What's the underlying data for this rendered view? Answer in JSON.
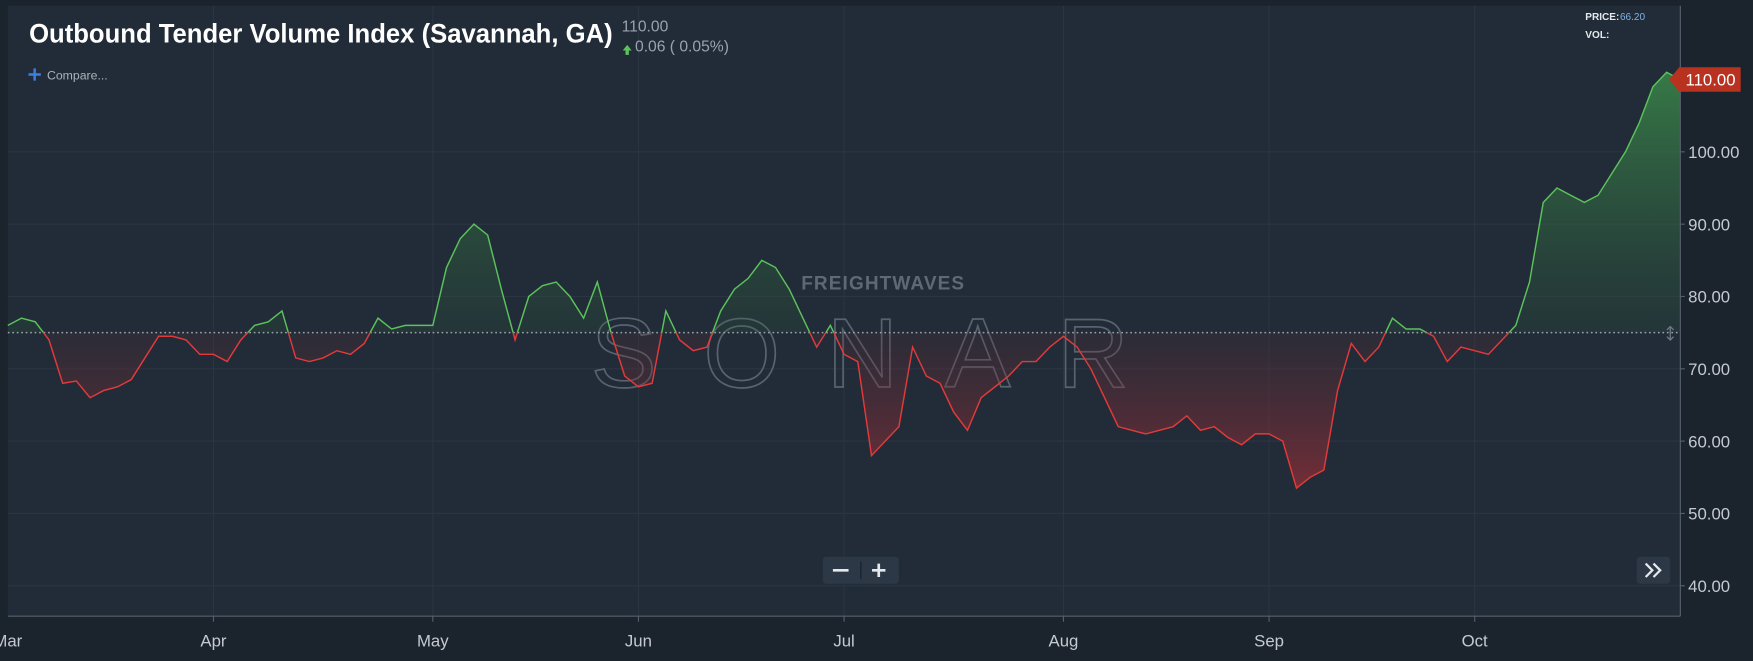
{
  "header": {
    "title": "Outbound Tender Volume Index (Savannah, GA)",
    "price": "110.00",
    "change": "0.06 ( 0.05%)",
    "compare": "Compare...",
    "price_label": "PRICE:",
    "price_value": "66.20",
    "vol_label": "VOL:"
  },
  "chart_data": {
    "type": "line",
    "categories": [
      "Mar",
      null,
      null,
      null,
      null,
      null,
      null,
      null,
      null,
      null,
      null,
      null,
      null,
      null,
      null,
      "Apr",
      null,
      null,
      null,
      null,
      null,
      null,
      null,
      null,
      null,
      null,
      null,
      null,
      null,
      null,
      null,
      "May",
      null,
      null,
      null,
      null,
      null,
      null,
      null,
      null,
      null,
      null,
      null,
      null,
      null,
      null,
      "Jun",
      null,
      null,
      null,
      null,
      null,
      null,
      null,
      null,
      null,
      null,
      null,
      null,
      null,
      null,
      "Jul",
      null,
      null,
      null,
      null,
      null,
      null,
      null,
      null,
      null,
      null,
      null,
      null,
      null,
      null,
      null,
      "Aug",
      null,
      null,
      null,
      null,
      null,
      null,
      null,
      null,
      null,
      null,
      null,
      null,
      null,
      null,
      "Sep",
      null,
      null,
      null,
      null,
      null,
      null,
      null,
      null,
      null,
      null,
      null,
      null,
      null,
      null,
      "Oct",
      null,
      null,
      null,
      null,
      null,
      null,
      null,
      null,
      null,
      null,
      null,
      null,
      null,
      null,
      null
    ],
    "series": [
      {
        "values": [
          76,
          77,
          76.5,
          74,
          68,
          68.3,
          66,
          67,
          67.5,
          68.5,
          71.5,
          74.5,
          74.5,
          74,
          72,
          72,
          71,
          74,
          76,
          76.5,
          78,
          71.5,
          71,
          71.5,
          72.5,
          72,
          73.5,
          77,
          75.5,
          76,
          76,
          76,
          84,
          88,
          90,
          88.5,
          81,
          74,
          80,
          81.5,
          82,
          80,
          77,
          82,
          75,
          69,
          67.5,
          68,
          78,
          74,
          72.5,
          73,
          78,
          81,
          82.5,
          85,
          84,
          81,
          77,
          73,
          76,
          72,
          71,
          58,
          60,
          62,
          73,
          69,
          68,
          64,
          61.5,
          66,
          67.5,
          69,
          71,
          71,
          73,
          74.5,
          73,
          70,
          66,
          62,
          61.5,
          61,
          61.5,
          62,
          63.5,
          61.5,
          62,
          60.5,
          59.5,
          61,
          61,
          60,
          53.5,
          55,
          56,
          67,
          73.5,
          71,
          73,
          77,
          75.5,
          75.5,
          74.5,
          71,
          73,
          72.5,
          72,
          74,
          76,
          82,
          93,
          95,
          94,
          93,
          94,
          97,
          100,
          104,
          109,
          111,
          110
        ],
        "color_up": "#5cc25c",
        "color_down": "#e23a3a"
      }
    ],
    "baseline": 75,
    "ylim": [
      35.8,
      120.2
    ],
    "yticks": [
      {
        "value": 40,
        "label": "40.00"
      },
      {
        "value": 50,
        "label": "50.00"
      },
      {
        "value": 60,
        "label": "60.00"
      },
      {
        "value": 70,
        "label": "70.00"
      },
      {
        "value": 80,
        "label": "80.00"
      },
      {
        "value": 90,
        "label": "90.00"
      },
      {
        "value": 100,
        "label": "100.00"
      }
    ],
    "last_label": {
      "value": 110,
      "label": "110.00"
    },
    "grid": true,
    "watermark": [
      "FREIGHTWAVES",
      "SONAR"
    ]
  }
}
